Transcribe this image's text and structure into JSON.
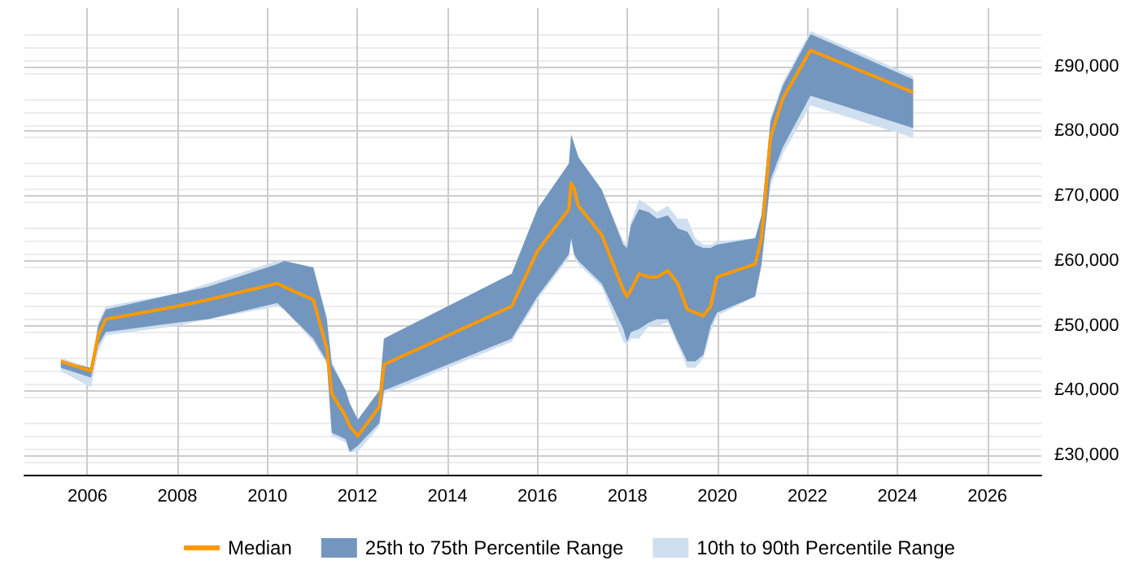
{
  "chart_data": {
    "type": "line",
    "x": [
      2005.41,
      2006.08,
      2006.24,
      2006.41,
      2008.01,
      2008.68,
      2010.22,
      2010.37,
      2011.02,
      2011.32,
      2011.43,
      2011.74,
      2011.83,
      2012.01,
      2012.49,
      2012.59,
      2015.43,
      2016.0,
      2016.7,
      2016.75,
      2016.82,
      2016.91,
      2017.43,
      2017.91,
      2017.99,
      2018.08,
      2018.26,
      2018.48,
      2018.66,
      2018.9,
      2019.12,
      2019.33,
      2019.51,
      2019.69,
      2019.85,
      2019.99,
      2020.84,
      2020.98,
      2021.18,
      2021.45,
      2022.07,
      2024.35
    ],
    "series": [
      {
        "name": "10th to 90th Percentile Range",
        "type": "area",
        "color": "#cfdff0",
        "values": [
          null,
          null,
          null,
          null,
          null,
          null,
          null,
          null,
          null,
          null,
          null,
          null,
          null,
          null,
          null,
          null,
          null,
          null,
          null,
          null,
          null,
          null,
          null,
          null,
          null,
          null,
          null,
          null,
          null,
          null,
          null,
          null,
          null,
          null,
          null,
          null,
          null,
          null,
          null,
          null,
          null,
          null
        ],
        "upper": [
          45000,
          43500,
          50500,
          53000,
          55000,
          56500,
          60000,
          60000,
          59000,
          51500,
          44500,
          40000,
          38000,
          35500,
          40000,
          48000,
          58000,
          68000,
          75000,
          79500,
          78000,
          76000,
          71000,
          63000,
          62500,
          66000,
          69500,
          68500,
          67500,
          68500,
          66500,
          66500,
          63500,
          62500,
          62500,
          63000,
          63500,
          67000,
          82000,
          87500,
          95500,
          88500
        ],
        "lower": [
          43000,
          40500,
          46000,
          48500,
          50000,
          51000,
          53000,
          52500,
          47500,
          44000,
          33000,
          32000,
          30500,
          30500,
          34500,
          39500,
          47500,
          54000,
          60500,
          63000,
          60500,
          59500,
          56000,
          47500,
          47000,
          48000,
          48000,
          50000,
          50000,
          50500,
          47000,
          43500,
          43500,
          45000,
          49000,
          51500,
          54500,
          59000,
          71500,
          76500,
          84000,
          79000
        ]
      },
      {
        "name": "25th to 75th Percentile Range",
        "type": "area",
        "color": "#7396be",
        "values": [
          null,
          null,
          null,
          null,
          null,
          null,
          null,
          null,
          null,
          null,
          null,
          null,
          null,
          null,
          null,
          null,
          null,
          null,
          null,
          null,
          null,
          null,
          null,
          null,
          null,
          null,
          null,
          null,
          null,
          null,
          null,
          null,
          null,
          null,
          null,
          null,
          null,
          null,
          null,
          null,
          null,
          null
        ],
        "upper": [
          44500,
          43500,
          50000,
          52500,
          55000,
          56000,
          59500,
          60000,
          59000,
          51000,
          44000,
          40000,
          38000,
          35500,
          40000,
          48000,
          58000,
          68000,
          75000,
          79500,
          78000,
          76000,
          71000,
          62500,
          62000,
          65500,
          68000,
          67500,
          66500,
          67000,
          65000,
          64500,
          62500,
          62000,
          62000,
          62500,
          63500,
          67000,
          81500,
          87000,
          95000,
          88000
        ],
        "lower": [
          43500,
          42000,
          47000,
          49000,
          50500,
          51000,
          53500,
          52500,
          48000,
          44500,
          33500,
          32500,
          30500,
          31500,
          35000,
          40000,
          48000,
          54500,
          61000,
          63500,
          61000,
          60000,
          56500,
          49500,
          47500,
          49000,
          49500,
          50500,
          51000,
          51000,
          47500,
          44500,
          44500,
          45500,
          50000,
          52000,
          54500,
          59500,
          72500,
          77500,
          85500,
          80500
        ]
      },
      {
        "name": "Median",
        "color": "#ff9900",
        "values": [
          44500,
          43000,
          48500,
          51000,
          53000,
          54000,
          56500,
          56000,
          54000,
          46500,
          39500,
          36000,
          34500,
          33000,
          37500,
          44000,
          53000,
          61500,
          68000,
          72000,
          71000,
          68500,
          64000,
          55500,
          54500,
          55500,
          58000,
          57500,
          57500,
          58500,
          56500,
          52500,
          52000,
          51500,
          53000,
          57500,
          59500,
          63500,
          79000,
          85000,
          92500,
          86000
        ]
      }
    ],
    "xlim": [
      2004.6,
      2027.2
    ],
    "xticks": [
      2006,
      2008,
      2010,
      2012,
      2014,
      2016,
      2018,
      2020,
      2022,
      2024,
      2026
    ],
    "ylim": [
      27000,
      99000
    ],
    "yticks": [
      {
        "value": 30000,
        "label": "£30,000"
      },
      {
        "value": 40000,
        "label": "£40,000"
      },
      {
        "value": 50000,
        "label": "£50,000"
      },
      {
        "value": 60000,
        "label": "£60,000"
      },
      {
        "value": 70000,
        "label": "£70,000"
      },
      {
        "value": 80000,
        "label": "£80,000"
      },
      {
        "value": 90000,
        "label": "£90,000"
      }
    ],
    "grid": true,
    "legend": "bottom",
    "marker": "none"
  }
}
